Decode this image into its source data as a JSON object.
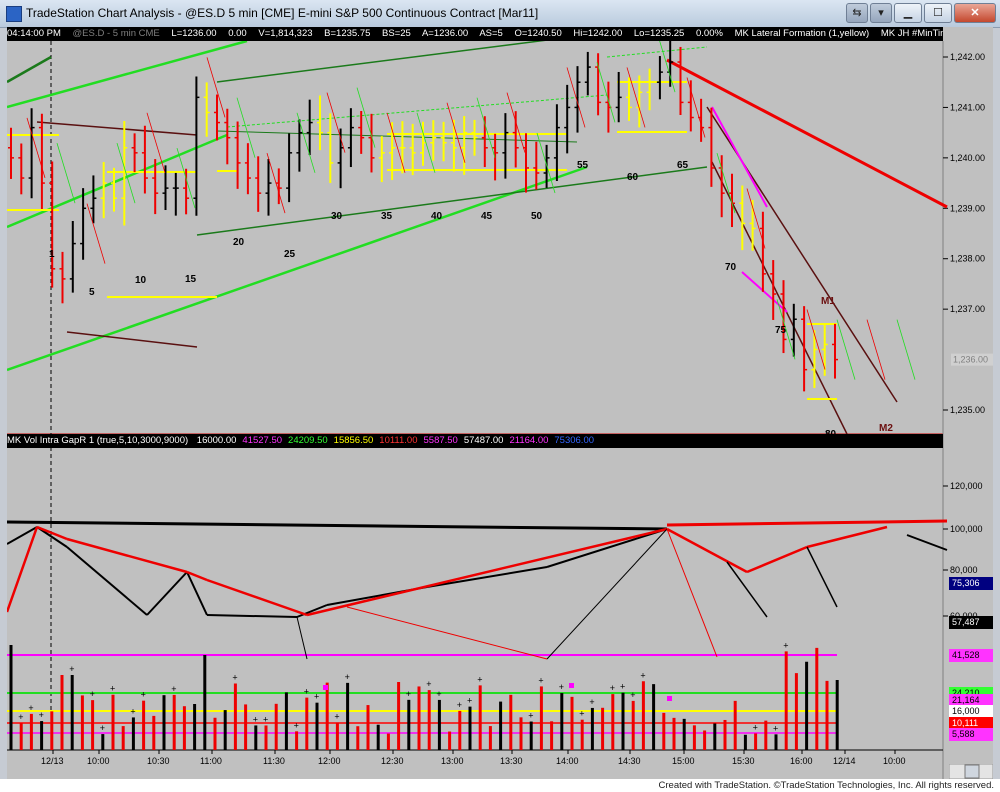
{
  "window": {
    "title": "TradeStation Chart Analysis - @ES.D 5 min [CME] E-mini S&P 500 Continuous Contract [Mar11]"
  },
  "infobar": {
    "time": "04:14:00 PM",
    "symbol": "@ES.D - 5 min  CME",
    "last": "L=1236.00",
    "chg": "0.00",
    "volume": "V=1,814,323",
    "bid": "B=1235.75",
    "bidsize": "BS=25",
    "ask": "A=1236.00",
    "asksize": "AS=5",
    "open": "O=1240.50",
    "high": "Hi=1242.00",
    "low": "Lo=1235.25",
    "pct": "0.00%",
    "study1": "MK Lateral Formation (1,yellow)",
    "study2": "MK JH #MinTimer (10,80,25,black,yello"
  },
  "indicator": {
    "name": "MK Vol Intra GapR 1 (true,5,10,3000,9000)",
    "values": [
      {
        "v": "16000.00",
        "c": "#ffffff"
      },
      {
        "v": "41527.50",
        "c": "#ff33ff"
      },
      {
        "v": "24209.50",
        "c": "#33ff33"
      },
      {
        "v": "15856.50",
        "c": "#ffff00"
      },
      {
        "v": "10111.00",
        "c": "#ff3333"
      },
      {
        "v": "5587.50",
        "c": "#ff33ff"
      },
      {
        "v": "57487.00",
        "c": "#ffffff"
      },
      {
        "v": "21164.00",
        "c": "#ff33ff"
      },
      {
        "v": "75306.00",
        "c": "#3366ff"
      }
    ]
  },
  "price_axis": [
    "1,242.00",
    "1,241.00",
    "1,240.00",
    "1,239.00",
    "1,238.00",
    "1,237.00",
    "1,235.00"
  ],
  "price_current": "1,236.00",
  "vol_axis": [
    "120,000",
    "100,000",
    "80,000",
    "60,000"
  ],
  "vol_boxes": [
    {
      "v": "75,306",
      "bg": "#000080",
      "fg": "#ffffff"
    },
    {
      "v": "57,487",
      "bg": "#000000",
      "fg": "#ffffff"
    },
    {
      "v": "41,528",
      "bg": "#ff33ff",
      "fg": "#000000"
    },
    {
      "v": "24,210",
      "bg": "#33ff33",
      "fg": "#000000"
    },
    {
      "v": "21,164",
      "bg": "#ff33ff",
      "fg": "#000000"
    },
    {
      "v": "16,000",
      "bg": "#ffffff",
      "fg": "#000000"
    },
    {
      "v": "10,111",
      "bg": "#ff0000",
      "fg": "#ffffff"
    },
    {
      "v": "5,588",
      "bg": "#ff33ff",
      "fg": "#000000"
    }
  ],
  "time_axis": [
    "12/13",
    "10:00",
    "10:30",
    "11:00",
    "11:30",
    "12:00",
    "12:30",
    "13:00",
    "13:30",
    "14:00",
    "14:30",
    "15:00",
    "15:30",
    "16:00",
    "12/14",
    "10:00"
  ],
  "bar_labels": [
    "1",
    "5",
    "10",
    "15",
    "20",
    "25",
    "30",
    "35",
    "40",
    "45",
    "50",
    "55",
    "60",
    "65",
    "70",
    "75",
    "80",
    "M1",
    "M2"
  ],
  "footer": {
    "credit": "Created with TradeStation. ©TradeStation Technologies, Inc. All rights reserved."
  }
}
